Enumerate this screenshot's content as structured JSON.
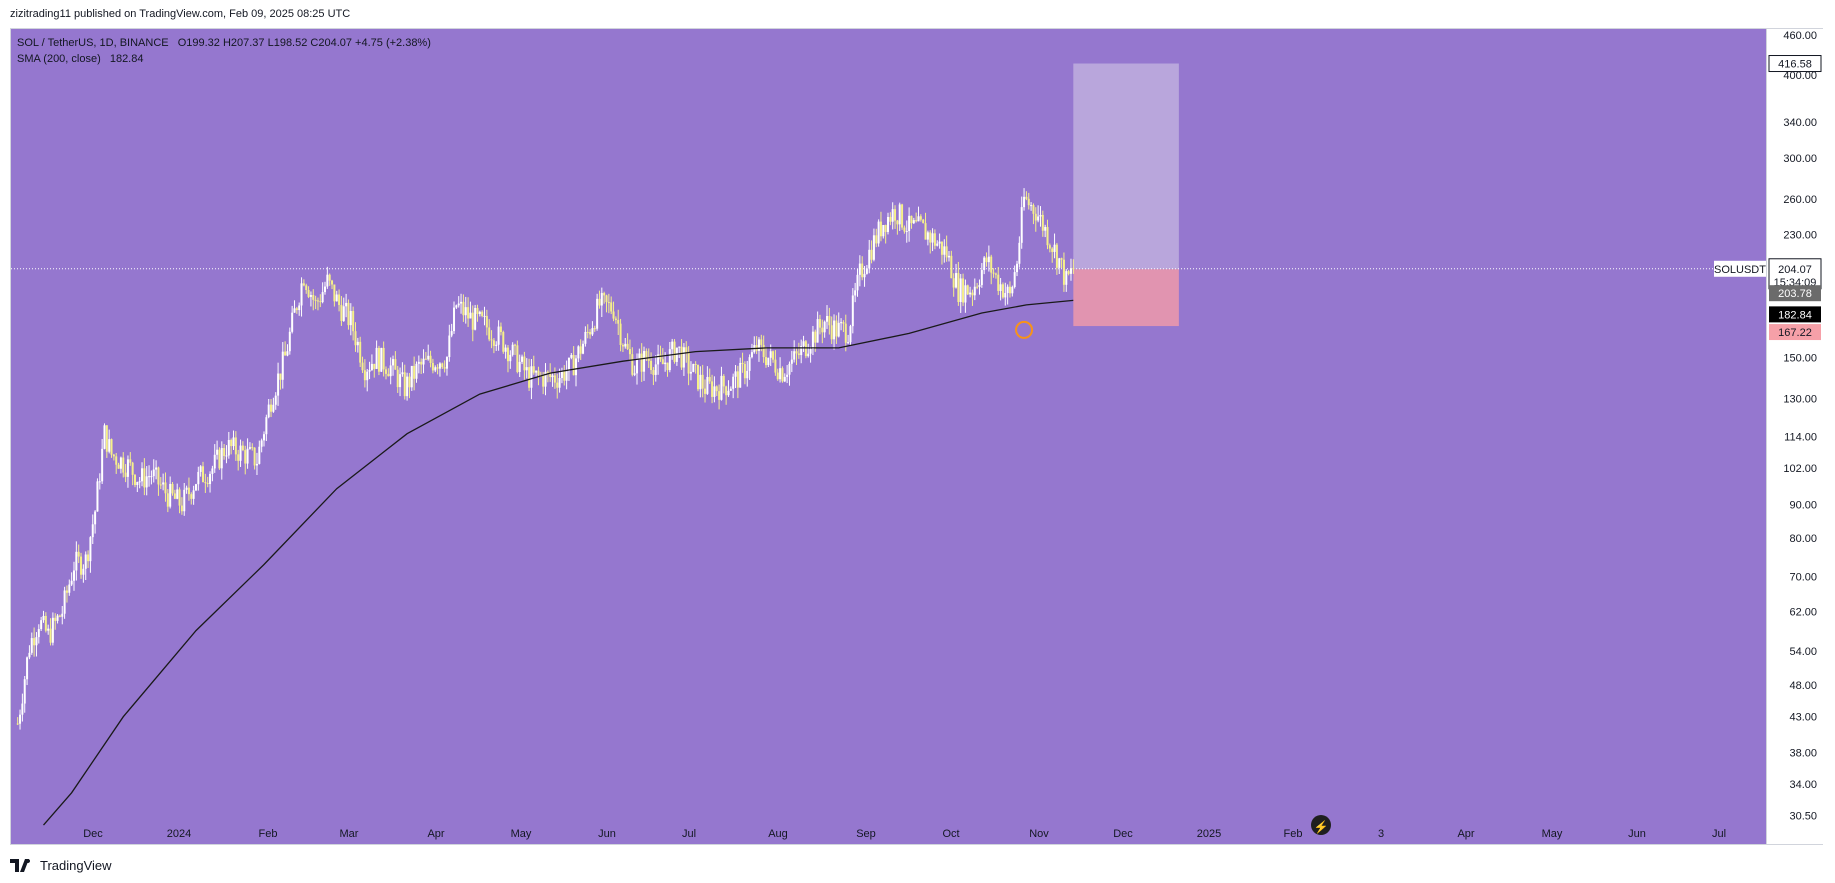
{
  "publish_line": "zizitrading11 published on TradingView.com, Feb 09, 2025 08:25 UTC",
  "legend": {
    "symbol_line": "SOL / TetherUS, 1D, BINANCE",
    "ohlc": "O199.32  H207.37  L198.52  C204.07  +4.75 (+2.38%)",
    "sma_label": "SMA (200, close)",
    "sma_value": "182.84"
  },
  "footer": {
    "brand": "TradingView"
  },
  "price_tags": {
    "target": "416.58",
    "symbol": "SOLUSDT",
    "last": "204.07",
    "countdown": "15:34:09",
    "entry": "203.78",
    "sma": "182.84",
    "stop": "167.22"
  },
  "colors": {
    "background": "#9577cf",
    "candle": "#f6f08a",
    "wick_up": "#ffffff",
    "sma_line": "#1a1a1a",
    "profit_zone": "#b9a6dc",
    "loss_zone": "#e194b0",
    "marker": "#f7931a"
  },
  "chart_data": {
    "type": "candlestick",
    "symbol": "SOL / TetherUS",
    "interval": "1D",
    "exchange": "BINANCE",
    "y_scale": "log",
    "ylim": [
      29,
      460
    ],
    "y_ticks": [
      460,
      400,
      340,
      300,
      260,
      230,
      204.07,
      150,
      130,
      114,
      102,
      90,
      80,
      70,
      62,
      54,
      48,
      43,
      38,
      34,
      30.5
    ],
    "y_tick_labels": [
      "460.00",
      "400.00",
      "340.00",
      "300.00",
      "260.00",
      "230.00",
      "",
      "150.00",
      "130.00",
      "114.00",
      "102.00",
      "90.00",
      "80.00",
      "70.00",
      "62.00",
      "54.00",
      "48.00",
      "43.00",
      "38.00",
      "34.00",
      "30.50"
    ],
    "x_labels": [
      "Dec",
      "2024",
      "Feb",
      "Mar",
      "Apr",
      "May",
      "Jun",
      "Jul",
      "Aug",
      "Sep",
      "Oct",
      "Nov",
      "Dec",
      "2025",
      "Feb",
      "3",
      "Apr",
      "May",
      "Jun",
      "Jul"
    ],
    "price_path": [
      [
        "2023-11-17",
        42
      ],
      [
        "2023-11-22",
        55
      ],
      [
        "2023-11-26",
        60
      ],
      [
        "2023-11-30",
        57
      ],
      [
        "2023-12-06",
        62
      ],
      [
        "2023-12-11",
        73
      ],
      [
        "2023-12-16",
        74
      ],
      [
        "2023-12-20",
        88
      ],
      [
        "2023-12-24",
        115
      ],
      [
        "2023-12-27",
        107
      ],
      [
        "2024-01-03",
        103
      ],
      [
        "2024-01-08",
        98
      ],
      [
        "2024-01-13",
        100
      ],
      [
        "2024-01-20",
        93
      ],
      [
        "2024-01-26",
        90
      ],
      [
        "2024-02-01",
        98
      ],
      [
        "2024-02-08",
        102
      ],
      [
        "2024-02-14",
        110
      ],
      [
        "2024-02-20",
        108
      ],
      [
        "2024-02-27",
        105
      ],
      [
        "2024-03-04",
        130
      ],
      [
        "2024-03-10",
        150
      ],
      [
        "2024-03-14",
        175
      ],
      [
        "2024-03-18",
        200
      ],
      [
        "2024-03-23",
        180
      ],
      [
        "2024-03-28",
        195
      ],
      [
        "2024-04-02",
        180
      ],
      [
        "2024-04-07",
        170
      ],
      [
        "2024-04-13",
        145
      ],
      [
        "2024-04-18",
        150
      ],
      [
        "2024-04-24",
        145
      ],
      [
        "2024-04-30",
        135
      ],
      [
        "2024-05-06",
        145
      ],
      [
        "2024-05-12",
        148
      ],
      [
        "2024-05-18",
        150
      ],
      [
        "2024-05-22",
        180
      ],
      [
        "2024-05-28",
        172
      ],
      [
        "2024-06-03",
        168
      ],
      [
        "2024-06-10",
        160
      ],
      [
        "2024-06-16",
        150
      ],
      [
        "2024-06-22",
        140
      ],
      [
        "2024-06-28",
        140
      ],
      [
        "2024-07-04",
        140
      ],
      [
        "2024-07-10",
        145
      ],
      [
        "2024-07-16",
        160
      ],
      [
        "2024-07-22",
        180
      ],
      [
        "2024-07-28",
        178
      ],
      [
        "2024-08-02",
        155
      ],
      [
        "2024-08-06",
        145
      ],
      [
        "2024-08-11",
        150
      ],
      [
        "2024-08-17",
        145
      ],
      [
        "2024-08-24",
        155
      ],
      [
        "2024-08-29",
        145
      ],
      [
        "2024-09-05",
        135
      ],
      [
        "2024-09-10",
        135
      ],
      [
        "2024-09-16",
        137
      ],
      [
        "2024-09-21",
        142
      ],
      [
        "2024-09-27",
        155
      ],
      [
        "2024-10-02",
        150
      ],
      [
        "2024-10-08",
        143
      ],
      [
        "2024-10-14",
        150
      ],
      [
        "2024-10-20",
        160
      ],
      [
        "2024-10-26",
        170
      ],
      [
        "2024-10-31",
        165
      ],
      [
        "2024-11-05",
        165
      ],
      [
        "2024-11-10",
        200
      ],
      [
        "2024-11-15",
        220
      ],
      [
        "2024-11-20",
        240
      ],
      [
        "2024-11-25",
        250
      ],
      [
        "2024-12-01",
        235
      ],
      [
        "2024-12-06",
        235
      ],
      [
        "2024-12-12",
        225
      ],
      [
        "2024-12-17",
        215
      ],
      [
        "2024-12-22",
        190
      ],
      [
        "2024-12-28",
        190
      ],
      [
        "2025-01-03",
        210
      ],
      [
        "2025-01-08",
        195
      ],
      [
        "2025-01-13",
        185
      ],
      [
        "2025-01-16",
        210
      ],
      [
        "2025-01-19",
        260
      ],
      [
        "2025-01-24",
        250
      ],
      [
        "2025-01-29",
        230
      ],
      [
        "2025-02-03",
        210
      ],
      [
        "2025-02-06",
        195
      ],
      [
        "2025-02-09",
        204.07
      ]
    ],
    "sma_200_path": [
      [
        "2023-11-28",
        29.5
      ],
      [
        "2023-12-10",
        33
      ],
      [
        "2024-01-01",
        43
      ],
      [
        "2024-02-01",
        58
      ],
      [
        "2024-03-01",
        73
      ],
      [
        "2024-04-01",
        95
      ],
      [
        "2024-05-01",
        115
      ],
      [
        "2024-06-01",
        132
      ],
      [
        "2024-07-01",
        142
      ],
      [
        "2024-08-01",
        148
      ],
      [
        "2024-09-01",
        153
      ],
      [
        "2024-10-01",
        155
      ],
      [
        "2024-11-01",
        155
      ],
      [
        "2024-12-01",
        163
      ],
      [
        "2025-01-01",
        175
      ],
      [
        "2025-01-20",
        180
      ],
      [
        "2025-02-09",
        182.84
      ]
    ],
    "position_tool": {
      "type": "long",
      "entry": 203.78,
      "target": 416.58,
      "stop": 167.22,
      "start": "2025-02-09",
      "end": "2025-03-26"
    },
    "marker": {
      "date": "2025-01-19",
      "price": 165
    }
  }
}
